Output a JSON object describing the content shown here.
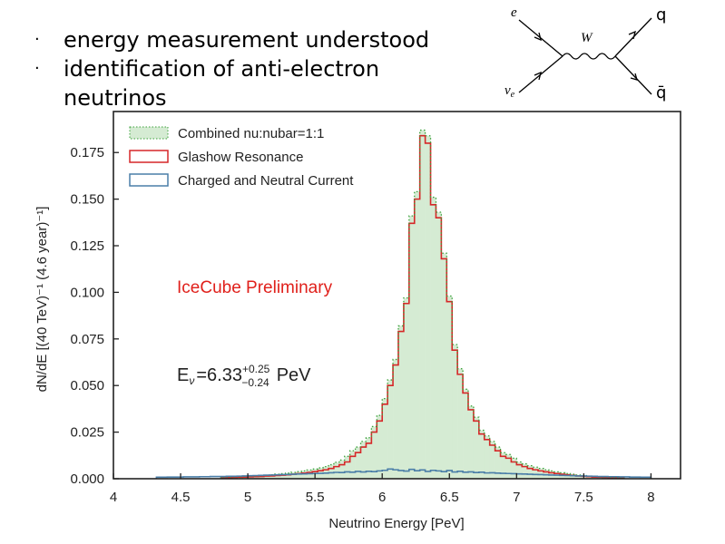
{
  "slide": {
    "bullets": [
      {
        "text": "energy measurement understood"
      },
      {
        "text": "identification of anti-electron\nneutrinos"
      }
    ],
    "feynman": {
      "labels": {
        "e": "e",
        "nu": "ν",
        "nu_sub": "e",
        "W": "W",
        "q": "q",
        "qbar": "q̄"
      }
    }
  },
  "chart_data": {
    "type": "histogram",
    "xlabel": "Neutrino Energy [PeV]",
    "ylabel": "dN/dE [(40 TeV)⁻¹ (4.6 year)⁻¹]",
    "xlim": [
      4,
      8.22
    ],
    "ylim": [
      0,
      0.197
    ],
    "xticks": [
      "4",
      "4.5",
      "5",
      "5.5",
      "6",
      "6.5",
      "7",
      "7.5",
      "8"
    ],
    "yticks": [
      "0.000",
      "0.025",
      "0.050",
      "0.075",
      "0.100",
      "0.125",
      "0.150",
      "0.175"
    ],
    "grid": false,
    "legend_position": "top-left",
    "bin_width": 0.04,
    "annotations": {
      "preliminary": "IceCube Preliminary",
      "energy_prefix": "E",
      "energy_sub": "ν",
      "energy_value": "=6.33",
      "energy_plus": "+0.25",
      "energy_minus": "−0.24",
      "energy_unit": "PeV"
    },
    "colors": {
      "combined_fill": "#d5ebd3",
      "combined_edge": "#3aa03a",
      "glashow": "#d62728",
      "ccnc": "#4a7ea8",
      "preliminary": "#e0201b"
    },
    "series": [
      {
        "name": "Combined nu:nubar=1:1",
        "x_start": 4.8,
        "values": [
          0.0008,
          0.0009,
          0.001,
          0.0011,
          0.0012,
          0.0014,
          0.0015,
          0.0017,
          0.0019,
          0.0021,
          0.0024,
          0.0027,
          0.003,
          0.0034,
          0.0038,
          0.0042,
          0.0047,
          0.0052,
          0.0058,
          0.0065,
          0.0075,
          0.0088,
          0.01,
          0.012,
          0.015,
          0.017,
          0.02,
          0.022,
          0.028,
          0.034,
          0.043,
          0.053,
          0.064,
          0.082,
          0.097,
          0.141,
          0.154,
          0.187,
          0.184,
          0.151,
          0.143,
          0.121,
          0.098,
          0.072,
          0.059,
          0.048,
          0.039,
          0.033,
          0.026,
          0.023,
          0.02,
          0.017,
          0.014,
          0.013,
          0.011,
          0.009,
          0.008,
          0.007,
          0.0062,
          0.0055,
          0.0048,
          0.0042,
          0.0037,
          0.0032,
          0.0028,
          0.0024,
          0.002,
          0.0017,
          0.0014,
          0.0012,
          0.001,
          0.0009,
          0.0008,
          0.0007,
          0.0006
        ]
      },
      {
        "name": "Glashow Resonance",
        "x_start": 4.8,
        "values": [
          0.0005,
          0.0006,
          0.0007,
          0.0008,
          0.0009,
          0.001,
          0.0011,
          0.0012,
          0.0014,
          0.0015,
          0.0017,
          0.0019,
          0.0021,
          0.0024,
          0.0027,
          0.003,
          0.0034,
          0.0038,
          0.0043,
          0.0048,
          0.0055,
          0.0065,
          0.0075,
          0.009,
          0.012,
          0.014,
          0.017,
          0.019,
          0.025,
          0.031,
          0.04,
          0.05,
          0.061,
          0.079,
          0.094,
          0.137,
          0.15,
          0.184,
          0.18,
          0.147,
          0.14,
          0.118,
          0.095,
          0.069,
          0.056,
          0.046,
          0.037,
          0.031,
          0.024,
          0.021,
          0.018,
          0.015,
          0.012,
          0.011,
          0.009,
          0.0075,
          0.0065,
          0.0055,
          0.0048,
          0.0042,
          0.0037,
          0.0032,
          0.0028,
          0.0024,
          0.0021,
          0.0018,
          0.0015,
          0.0013,
          0.0011,
          0.0009,
          0.0008,
          0.0007,
          0.0006,
          0.0005,
          0.0004
        ]
      },
      {
        "name": "Charged and Neutral Current",
        "x_start": 4.32,
        "values": [
          0.0008,
          0.0008,
          0.0009,
          0.0009,
          0.0009,
          0.001,
          0.001,
          0.001,
          0.0011,
          0.0011,
          0.0012,
          0.0012,
          0.0012,
          0.0013,
          0.0013,
          0.0014,
          0.0015,
          0.0016,
          0.0017,
          0.0018,
          0.0019,
          0.002,
          0.0021,
          0.0022,
          0.0023,
          0.0024,
          0.0025,
          0.0026,
          0.0027,
          0.0028,
          0.0029,
          0.003,
          0.0032,
          0.0034,
          0.0033,
          0.0037,
          0.0035,
          0.0039,
          0.0036,
          0.004,
          0.0038,
          0.0042,
          0.0045,
          0.0052,
          0.0048,
          0.0044,
          0.0041,
          0.005,
          0.0043,
          0.0047,
          0.0039,
          0.0045,
          0.0042,
          0.0038,
          0.0044,
          0.0036,
          0.004,
          0.0035,
          0.0037,
          0.0033,
          0.0035,
          0.0031,
          0.0032,
          0.003,
          0.0029,
          0.0028,
          0.0027,
          0.0026,
          0.0025,
          0.0024,
          0.0023,
          0.0022,
          0.0021,
          0.002,
          0.0019,
          0.0018,
          0.0017,
          0.0016,
          0.0015,
          0.0015,
          0.0014,
          0.0013,
          0.0012,
          0.0012,
          0.0011,
          0.0011,
          0.001,
          0.001,
          0.0009,
          0.0009,
          0.0008,
          0.0008
        ]
      }
    ]
  }
}
